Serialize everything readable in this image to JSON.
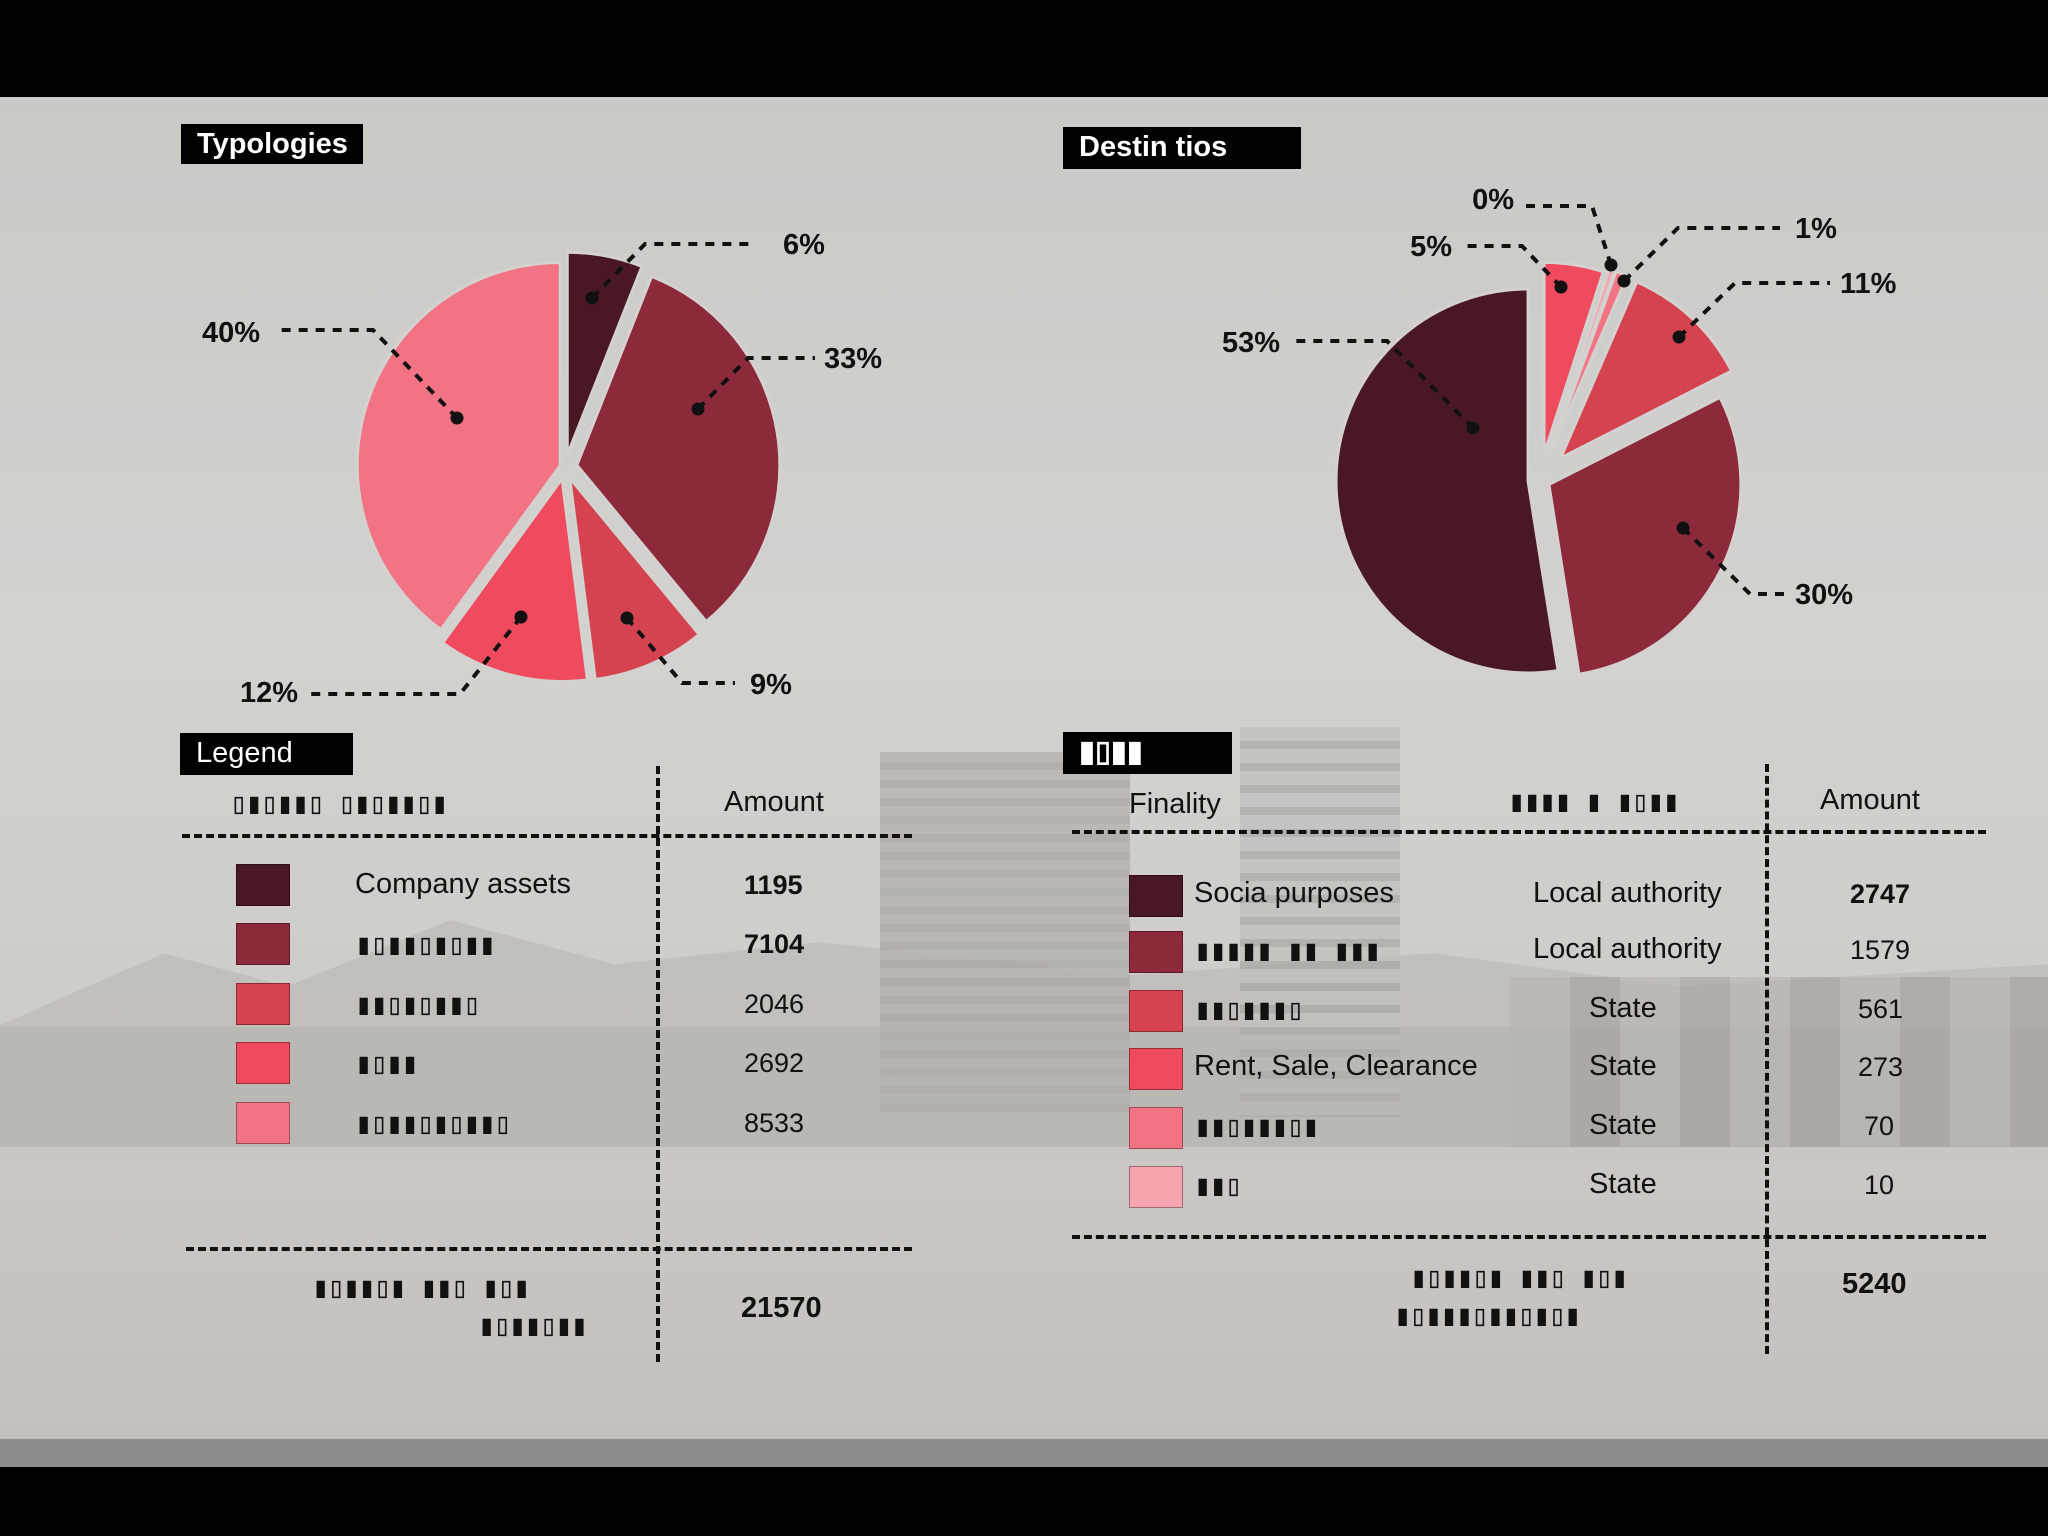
{
  "colors": {
    "c1": "#4a1822",
    "c2": "#8c2a3c",
    "c3": "#d4434f",
    "c4": "#ef4a5e",
    "c5": "#f27383",
    "c6": "#f6a3b0"
  },
  "chart_data": [
    {
      "type": "pie",
      "title": "Typologies",
      "values": [
        6,
        33,
        9,
        12,
        40
      ],
      "labels": [
        "6%",
        "33%",
        "9%",
        "12%",
        "40%"
      ]
    },
    {
      "type": "pie",
      "title": "Destin tios",
      "values": [
        53,
        30,
        11,
        1,
        0,
        5
      ],
      "labels": [
        "53%",
        "30%",
        "11%",
        "1%",
        "0%",
        "5%"
      ]
    }
  ],
  "legend": {
    "title": "Legend",
    "header_left": "▯▮▯▮▮▯ ▯▮▯▮▮▯▮",
    "header_amount": "Amount",
    "rows": [
      {
        "label": "Company assets",
        "amount": "1195",
        "bold": true
      },
      {
        "label": "▮▯▮▮▯▮▯▮▮",
        "amount": "7104",
        "bold": true
      },
      {
        "label": "▮▮▯▮▯▮▮▯",
        "amount": "2046",
        "bold": false
      },
      {
        "label": "▮▯▮▮",
        "amount": "2692",
        "bold": false
      },
      {
        "label": "▮▯▮▮▯▮▯▮▮▯",
        "amount": "8533",
        "bold": false
      }
    ],
    "total_line1": "▮▯▮▮▯▮ ▮▮▯ ▮▯▮",
    "total_line2": "▮▯▮▮▯▮▮",
    "total_value": "21570"
  },
  "finality": {
    "title": "▮▯▮▮",
    "header_finality": "Finality",
    "header_middle": "▮▮▮▮ ▮ ▮▯▮▮",
    "header_amount": "Amount",
    "rows": [
      {
        "label": "Socia  purposes",
        "authority": "Local authority",
        "amount": "2747",
        "bold": true
      },
      {
        "label": "▮▮▮▮▮ ▮▮ ▮▮▮",
        "authority": "Local authority",
        "amount": "1579",
        "bold": false
      },
      {
        "label": "▮▮▯▮▮▮▯",
        "authority": "State",
        "amount": "561",
        "bold": false
      },
      {
        "label": "Rent, Sale, Clearance",
        "authority": "State",
        "amount": "273",
        "bold": false
      },
      {
        "label": "▮▮▯▮▮▮▯▮",
        "authority": "State",
        "amount": "70",
        "bold": false
      },
      {
        "label": "▮▮▯",
        "authority": "State",
        "amount": "10",
        "bold": false
      }
    ],
    "total_line1": "▮▯▮▮▯▮ ▮▮▯ ▮▯▮",
    "total_line2": "▮▯▮▮▮▯▮▮▯▮▯▮",
    "total_value": "5240"
  }
}
